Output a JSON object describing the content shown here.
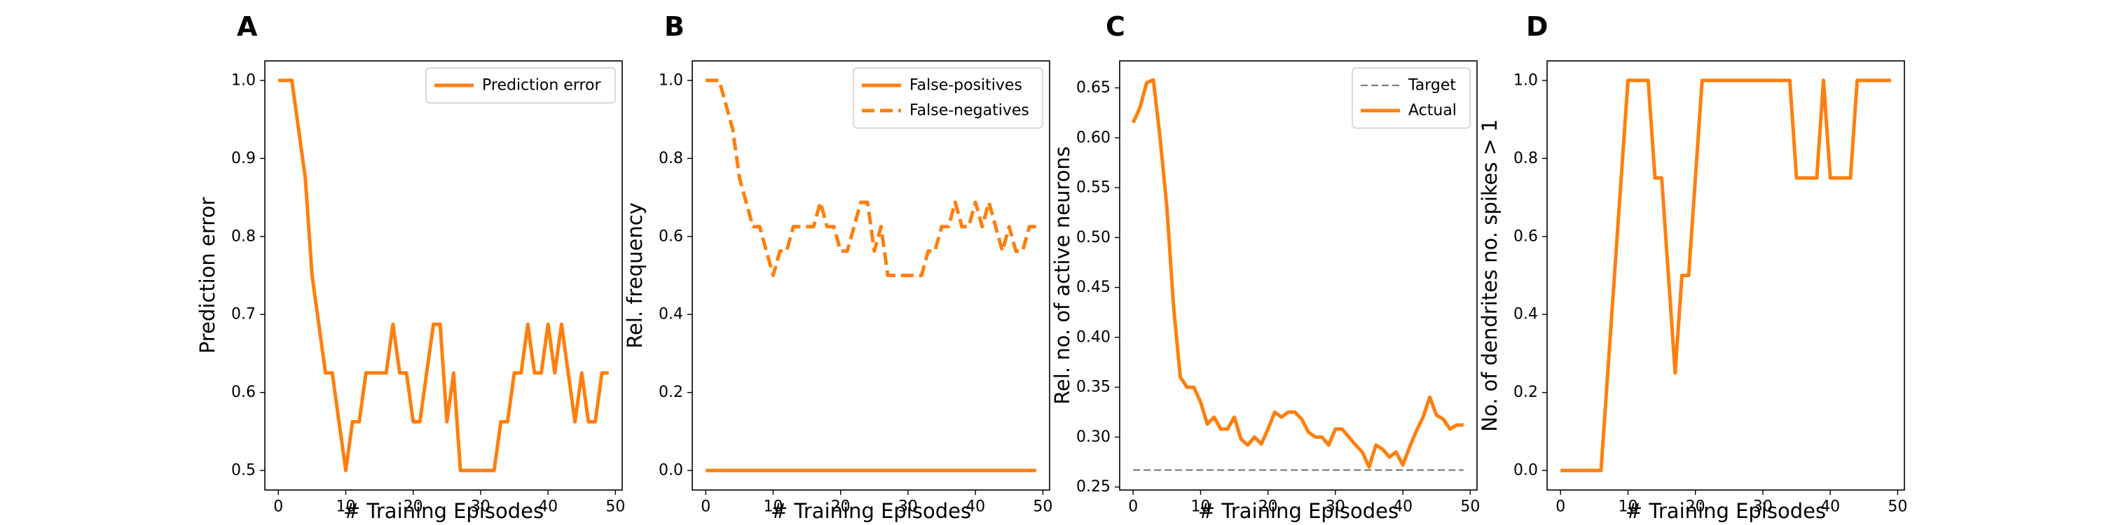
{
  "chart_data": [
    {
      "panel": "A",
      "type": "line",
      "xlabel": "# Training Episodes",
      "ylabel": "Prediction error",
      "xlim": [
        -2,
        51
      ],
      "ylim": [
        0.475,
        1.025
      ],
      "xticks": [
        0,
        10,
        20,
        30,
        40,
        50
      ],
      "yticks": [
        0.5,
        0.6,
        0.7,
        0.8,
        0.9,
        1.0
      ],
      "ytick_labels": [
        "0.5",
        "0.6",
        "0.7",
        "0.8",
        "0.9",
        "1.0"
      ],
      "grid": false,
      "legend": "top-right",
      "series": [
        {
          "name": "Prediction error",
          "color": "#ff7f0e",
          "style": "solid",
          "x": [
            0,
            1,
            2,
            3,
            4,
            5,
            6,
            7,
            8,
            9,
            10,
            11,
            12,
            13,
            14,
            15,
            16,
            17,
            18,
            19,
            20,
            21,
            22,
            23,
            24,
            25,
            26,
            27,
            28,
            29,
            30,
            31,
            32,
            33,
            34,
            35,
            36,
            37,
            38,
            39,
            40,
            41,
            42,
            43,
            44,
            45,
            46,
            47,
            48,
            49
          ],
          "y": [
            1.0,
            1.0,
            1.0,
            0.9375,
            0.875,
            0.75,
            0.6875,
            0.625,
            0.625,
            0.5625,
            0.5,
            0.5625,
            0.5625,
            0.625,
            0.625,
            0.625,
            0.625,
            0.6875,
            0.625,
            0.625,
            0.5625,
            0.5625,
            0.625,
            0.6875,
            0.6875,
            0.5625,
            0.625,
            0.5,
            0.5,
            0.5,
            0.5,
            0.5,
            0.5,
            0.5625,
            0.5625,
            0.625,
            0.625,
            0.6875,
            0.625,
            0.625,
            0.6875,
            0.625,
            0.6875,
            0.625,
            0.5625,
            0.625,
            0.5625,
            0.5625,
            0.625,
            0.625
          ]
        }
      ]
    },
    {
      "panel": "B",
      "type": "line",
      "xlabel": "# Training Episodes",
      "ylabel": "Rel. frequency",
      "xlim": [
        -2,
        51
      ],
      "ylim": [
        -0.05,
        1.05
      ],
      "xticks": [
        0,
        10,
        20,
        30,
        40,
        50
      ],
      "yticks": [
        0.0,
        0.2,
        0.4,
        0.6,
        0.8,
        1.0
      ],
      "ytick_labels": [
        "0.0",
        "0.2",
        "0.4",
        "0.6",
        "0.8",
        "1.0"
      ],
      "grid": false,
      "legend": "top-right",
      "series": [
        {
          "name": "False-positives",
          "color": "#ff7f0e",
          "style": "solid",
          "x": [
            0,
            49
          ],
          "y": [
            0.0,
            0.0
          ]
        },
        {
          "name": "False-negatives",
          "color": "#ff7f0e",
          "style": "dashed",
          "x": [
            0,
            1,
            2,
            3,
            4,
            5,
            6,
            7,
            8,
            9,
            10,
            11,
            12,
            13,
            14,
            15,
            16,
            17,
            18,
            19,
            20,
            21,
            22,
            23,
            24,
            25,
            26,
            27,
            28,
            29,
            30,
            31,
            32,
            33,
            34,
            35,
            36,
            37,
            38,
            39,
            40,
            41,
            42,
            43,
            44,
            45,
            46,
            47,
            48,
            49
          ],
          "y": [
            1.0,
            1.0,
            1.0,
            0.9375,
            0.875,
            0.75,
            0.6875,
            0.625,
            0.625,
            0.5625,
            0.5,
            0.5625,
            0.5625,
            0.625,
            0.625,
            0.625,
            0.625,
            0.6875,
            0.625,
            0.625,
            0.5625,
            0.5625,
            0.625,
            0.6875,
            0.6875,
            0.5625,
            0.625,
            0.5,
            0.5,
            0.5,
            0.5,
            0.5,
            0.5,
            0.5625,
            0.5625,
            0.625,
            0.625,
            0.6875,
            0.625,
            0.625,
            0.6875,
            0.625,
            0.6875,
            0.625,
            0.5625,
            0.625,
            0.5625,
            0.5625,
            0.625,
            0.625
          ]
        }
      ]
    },
    {
      "panel": "C",
      "type": "line",
      "xlabel": "# Training Episodes",
      "ylabel": "Rel. no. of active neurons",
      "xlim": [
        -2,
        51
      ],
      "ylim": [
        0.247,
        0.677
      ],
      "xticks": [
        0,
        10,
        20,
        30,
        40,
        50
      ],
      "yticks": [
        0.25,
        0.3,
        0.35,
        0.4,
        0.45,
        0.5,
        0.55,
        0.6,
        0.65
      ],
      "ytick_labels": [
        "0.25",
        "0.30",
        "0.35",
        "0.40",
        "0.45",
        "0.50",
        "0.55",
        "0.60",
        "0.65"
      ],
      "grid": false,
      "legend": "top-right",
      "series": [
        {
          "name": "Target",
          "color": "#7f7f7f",
          "style": "dashed",
          "x": [
            0,
            49
          ],
          "y": [
            0.267,
            0.267
          ]
        },
        {
          "name": "Actual",
          "color": "#ff7f0e",
          "style": "solid",
          "x": [
            0,
            1,
            2,
            3,
            4,
            5,
            6,
            7,
            8,
            9,
            10,
            11,
            12,
            13,
            14,
            15,
            16,
            17,
            18,
            19,
            20,
            21,
            22,
            23,
            24,
            25,
            26,
            27,
            28,
            29,
            30,
            31,
            32,
            33,
            34,
            35,
            36,
            37,
            38,
            39,
            40,
            41,
            42,
            43,
            44,
            45,
            46,
            47,
            48,
            49
          ],
          "y": [
            0.615,
            0.63,
            0.655,
            0.658,
            0.6,
            0.53,
            0.43,
            0.36,
            0.35,
            0.35,
            0.335,
            0.313,
            0.32,
            0.308,
            0.308,
            0.32,
            0.298,
            0.292,
            0.3,
            0.293,
            0.308,
            0.325,
            0.32,
            0.325,
            0.325,
            0.318,
            0.305,
            0.3,
            0.3,
            0.292,
            0.308,
            0.308,
            0.3,
            0.292,
            0.285,
            0.27,
            0.292,
            0.288,
            0.28,
            0.285,
            0.272,
            0.29,
            0.306,
            0.32,
            0.34,
            0.322,
            0.318,
            0.308,
            0.312,
            0.312
          ]
        }
      ]
    },
    {
      "panel": "D",
      "type": "line",
      "xlabel": "# Training Episodes",
      "ylabel": "No. of dendrites no. spikes > 1",
      "xlim": [
        -2,
        51
      ],
      "ylim": [
        -0.05,
        1.05
      ],
      "xticks": [
        0,
        10,
        20,
        30,
        40,
        50
      ],
      "yticks": [
        0.0,
        0.2,
        0.4,
        0.6,
        0.8,
        1.0
      ],
      "ytick_labels": [
        "0.0",
        "0.2",
        "0.4",
        "0.6",
        "0.8",
        "1.0"
      ],
      "grid": false,
      "legend": "",
      "series": [
        {
          "color": "#ff7f0e",
          "style": "solid",
          "x": [
            0,
            1,
            2,
            3,
            4,
            5,
            6,
            7,
            8,
            9,
            10,
            11,
            12,
            13,
            14,
            15,
            16,
            17,
            18,
            19,
            20,
            21,
            22,
            23,
            24,
            25,
            26,
            27,
            28,
            29,
            30,
            31,
            32,
            33,
            34,
            35,
            36,
            37,
            38,
            39,
            40,
            41,
            42,
            43,
            44,
            45,
            46,
            47,
            48,
            49
          ],
          "y": [
            0,
            0,
            0,
            0,
            0,
            0,
            0,
            0.25,
            0.5,
            0.75,
            1.0,
            1.0,
            1.0,
            1.0,
            0.75,
            0.75,
            0.5,
            0.25,
            0.5,
            0.5,
            0.75,
            1.0,
            1.0,
            1.0,
            1.0,
            1.0,
            1.0,
            1.0,
            1.0,
            1.0,
            1.0,
            1.0,
            1.0,
            1.0,
            1.0,
            0.75,
            0.75,
            0.75,
            0.75,
            1.0,
            0.75,
            0.75,
            0.75,
            0.75,
            1.0,
            1.0,
            1.0,
            1.0,
            1.0,
            1.0
          ]
        }
      ]
    }
  ]
}
